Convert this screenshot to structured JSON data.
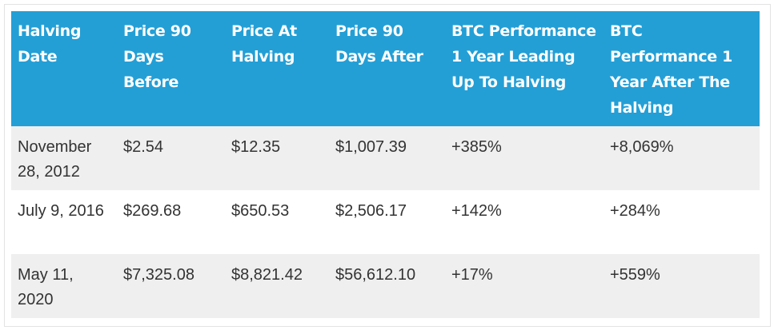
{
  "table": {
    "headers": [
      "Halving Date",
      "Price 90 Days Before",
      "Price At Halving",
      "Price 90 Days After",
      "BTC Performance 1 Year Leading Up To Halving",
      "BTC Performance 1 Year After The Halving"
    ],
    "rows": [
      [
        "November 28, 2012",
        "$2.54",
        "$12.35",
        "$1,007.39",
        "+385%",
        "+8,069%"
      ],
      [
        "July 9, 2016",
        "$269.68",
        "$650.53",
        "$2,506.17",
        "+142%",
        "+284%"
      ],
      [
        "May 11, 2020",
        "$7,325.08",
        "$8,821.42",
        "$56,612.10",
        "+17%",
        "+559%"
      ]
    ]
  },
  "colors": {
    "header_bg": "#239fd6",
    "header_text": "#ffffff",
    "row_alt_bg": "#efefef",
    "body_text": "#333333"
  }
}
